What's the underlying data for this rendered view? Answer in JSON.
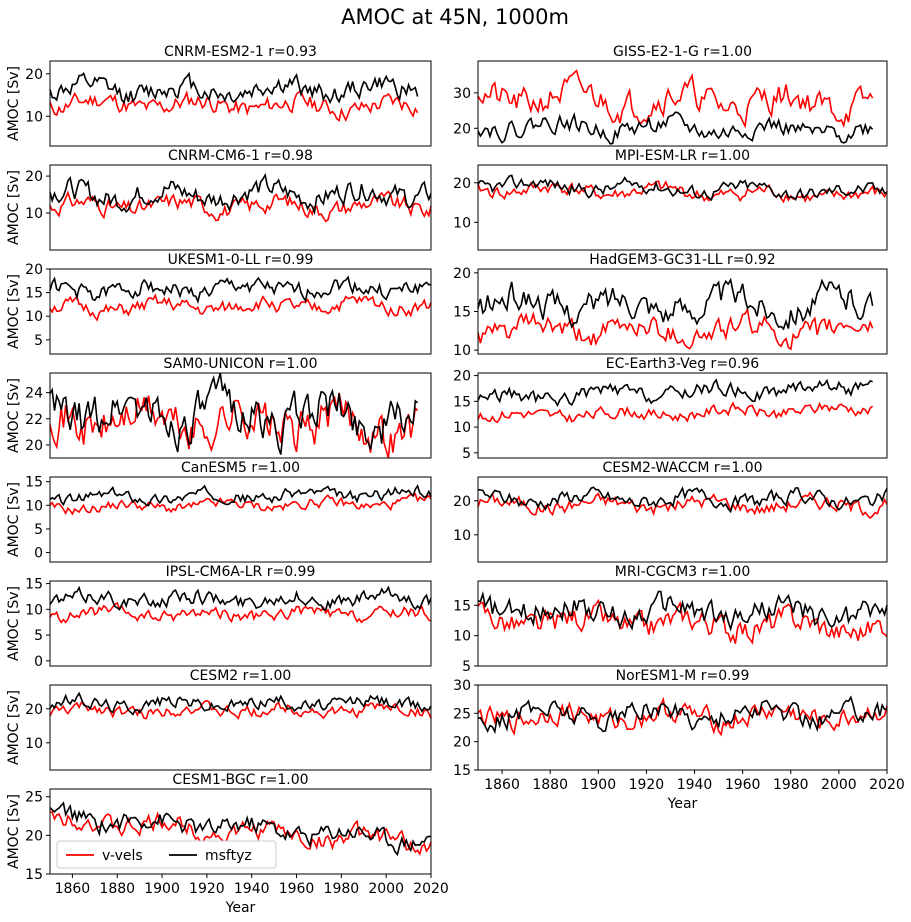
{
  "figure": {
    "title": "AMOC at 45N, 1000m",
    "ylabel": "AMOC [Sv]",
    "xlabel": "Year",
    "legend": {
      "entries": [
        "v-vels",
        "msftyz"
      ],
      "colors": [
        "#ff0000",
        "#000000"
      ],
      "placement": "lower-left"
    }
  },
  "chart_data": [
    {
      "type": "line",
      "title": "CNRM-ESM2-1 r=0.93",
      "xlim": [
        1850,
        2020
      ],
      "ylim": [
        3,
        23
      ],
      "yticks": [
        10,
        20
      ],
      "xticks": [],
      "ylabel": "AMOC [Sv]",
      "series": [
        {
          "name": "v-vels",
          "color": "#ff0000",
          "x": [
            1850,
            2014
          ],
          "base": 13,
          "amp": 1.8,
          "trend": -0.8,
          "seed": 11
        },
        {
          "name": "msftyz",
          "color": "#000000",
          "x": [
            1850,
            2014
          ],
          "base": 16,
          "amp": 2.0,
          "trend": 0.5,
          "seed": 12
        }
      ]
    },
    {
      "type": "line",
      "title": "GISS-E2-1-G r=1.00",
      "xlim": [
        1850,
        2020
      ],
      "ylim": [
        15,
        39
      ],
      "yticks": [
        20,
        30
      ],
      "xticks": [],
      "series": [
        {
          "name": "v-vels",
          "color": "#ff0000",
          "x": [
            1850,
            2014
          ],
          "base": 29,
          "amp": 3.5,
          "trend": -2,
          "seed": 21
        },
        {
          "name": "msftyz",
          "color": "#000000",
          "x": [
            1850,
            2014
          ],
          "base": 21,
          "amp": 2.2,
          "trend": -2,
          "seed": 22
        }
      ]
    },
    {
      "type": "line",
      "title": "CNRM-CM6-1 r=0.98",
      "xlim": [
        1850,
        2020
      ],
      "ylim": [
        0,
        23
      ],
      "yticks": [
        10,
        20
      ],
      "xticks": [],
      "ylabel": "AMOC [Sv]",
      "series": [
        {
          "name": "v-vels",
          "color": "#ff0000",
          "x": [
            1850,
            2020
          ],
          "base": 12,
          "amp": 2.0,
          "trend": 0,
          "seed": 31
        },
        {
          "name": "msftyz",
          "color": "#000000",
          "x": [
            1850,
            2020
          ],
          "base": 15,
          "amp": 2.5,
          "trend": 0.5,
          "seed": 32
        }
      ]
    },
    {
      "type": "line",
      "title": "MPI-ESM-LR r=1.00",
      "xlim": [
        1850,
        2020
      ],
      "ylim": [
        3,
        24.5
      ],
      "yticks": [
        10,
        20
      ],
      "xticks": [],
      "series": [
        {
          "name": "v-vels",
          "color": "#ff0000",
          "x": [
            1850,
            2020
          ],
          "base": 18.5,
          "amp": 1.5,
          "trend": -2,
          "seed": 41
        },
        {
          "name": "msftyz",
          "color": "#000000",
          "x": [
            1850,
            2020
          ],
          "base": 19.5,
          "amp": 1.5,
          "trend": -2,
          "seed": 42
        }
      ]
    },
    {
      "type": "line",
      "title": "UKESM1-0-LL r=0.99",
      "xlim": [
        1850,
        2020
      ],
      "ylim": [
        2,
        20
      ],
      "yticks": [
        5,
        10,
        15,
        20
      ],
      "xticks": [],
      "ylabel": "AMOC [Sv]",
      "series": [
        {
          "name": "v-vels",
          "color": "#ff0000",
          "x": [
            1850,
            2020
          ],
          "base": 11.5,
          "amp": 1.3,
          "trend": 1,
          "seed": 51
        },
        {
          "name": "msftyz",
          "color": "#000000",
          "x": [
            1850,
            2020
          ],
          "base": 15.5,
          "amp": 1.5,
          "trend": 0.5,
          "seed": 52
        }
      ]
    },
    {
      "type": "line",
      "title": "HadGEM3-GC31-LL r=0.92",
      "xlim": [
        1850,
        2020
      ],
      "ylim": [
        9.5,
        20.5
      ],
      "yticks": [
        10,
        15,
        20
      ],
      "xticks": [],
      "series": [
        {
          "name": "v-vels",
          "color": "#ff0000",
          "x": [
            1850,
            2014
          ],
          "base": 12.5,
          "amp": 1.3,
          "trend": 0,
          "seed": 61
        },
        {
          "name": "msftyz",
          "color": "#000000",
          "x": [
            1850,
            2014
          ],
          "base": 16,
          "amp": 1.6,
          "trend": 0,
          "seed": 62
        }
      ]
    },
    {
      "type": "line",
      "title": "SAM0-UNICON r=1.00",
      "xlim": [
        1850,
        2020
      ],
      "ylim": [
        19,
        25.5
      ],
      "yticks": [
        20,
        22,
        24
      ],
      "xticks": [],
      "ylabel": "AMOC [Sv]",
      "series": [
        {
          "name": "v-vels",
          "color": "#ff0000",
          "x": [
            1850,
            2014
          ],
          "base": 22,
          "amp": 1.4,
          "trend": -0.5,
          "seed": 71
        },
        {
          "name": "msftyz",
          "color": "#000000",
          "x": [
            1850,
            2014
          ],
          "base": 22.6,
          "amp": 1.4,
          "trend": -0.5,
          "seed": 72
        }
      ]
    },
    {
      "type": "line",
      "title": "EC-Earth3-Veg r=0.96",
      "xlim": [
        1850,
        2020
      ],
      "ylim": [
        4,
        20.5
      ],
      "yticks": [
        5,
        10,
        15,
        20
      ],
      "xticks": [],
      "series": [
        {
          "name": "v-vels",
          "color": "#ff0000",
          "x": [
            1850,
            2014
          ],
          "base": 12,
          "amp": 1.0,
          "trend": 1.5,
          "seed": 81
        },
        {
          "name": "msftyz",
          "color": "#000000",
          "x": [
            1850,
            2014
          ],
          "base": 15.5,
          "amp": 1.2,
          "trend": 2.5,
          "seed": 82
        }
      ]
    },
    {
      "type": "line",
      "title": "CanESM5 r=1.00",
      "xlim": [
        1850,
        2020
      ],
      "ylim": [
        -2,
        16
      ],
      "yticks": [
        0,
        5,
        10,
        15
      ],
      "xticks": [],
      "ylabel": "AMOC [Sv]",
      "series": [
        {
          "name": "v-vels",
          "color": "#ff0000",
          "x": [
            1850,
            2020
          ],
          "base": 9.5,
          "amp": 0.9,
          "trend": 1,
          "seed": 91
        },
        {
          "name": "msftyz",
          "color": "#000000",
          "x": [
            1850,
            2020
          ],
          "base": 11.5,
          "amp": 1.0,
          "trend": 1,
          "seed": 92
        }
      ]
    },
    {
      "type": "line",
      "title": "CESM2-WACCM r=1.00",
      "xlim": [
        1850,
        2020
      ],
      "ylim": [
        2,
        27
      ],
      "yticks": [
        10,
        20
      ],
      "xticks": [],
      "series": [
        {
          "name": "v-vels",
          "color": "#ff0000",
          "x": [
            1850,
            2020
          ],
          "base": 19,
          "amp": 1.8,
          "trend": 0,
          "seed": 101
        },
        {
          "name": "msftyz",
          "color": "#000000",
          "x": [
            1850,
            2020
          ],
          "base": 20.5,
          "amp": 1.8,
          "trend": 0,
          "seed": 102
        }
      ]
    },
    {
      "type": "line",
      "title": "IPSL-CM6A-LR r=0.99",
      "xlim": [
        1850,
        2020
      ],
      "ylim": [
        -1,
        15.5
      ],
      "yticks": [
        0,
        5,
        10,
        15
      ],
      "xticks": [],
      "ylabel": "AMOC [Sv]",
      "series": [
        {
          "name": "v-vels",
          "color": "#ff0000",
          "x": [
            1850,
            2020
          ],
          "base": 9,
          "amp": 1.0,
          "trend": 0,
          "seed": 111
        },
        {
          "name": "msftyz",
          "color": "#000000",
          "x": [
            1850,
            2020
          ],
          "base": 12,
          "amp": 1.2,
          "trend": 0,
          "seed": 112
        }
      ]
    },
    {
      "type": "line",
      "title": "MRI-CGCM3 r=1.00",
      "xlim": [
        1850,
        2020
      ],
      "ylim": [
        5,
        19
      ],
      "yticks": [
        5,
        10,
        15
      ],
      "xticks": [],
      "series": [
        {
          "name": "v-vels",
          "color": "#ff0000",
          "x": [
            1850,
            2020
          ],
          "base": 12.5,
          "amp": 1.8,
          "trend": -1,
          "seed": 121
        },
        {
          "name": "msftyz",
          "color": "#000000",
          "x": [
            1850,
            2020
          ],
          "base": 14.5,
          "amp": 1.8,
          "trend": -1,
          "seed": 122
        }
      ]
    },
    {
      "type": "line",
      "title": "CESM2 r=1.00",
      "xlim": [
        1850,
        2020
      ],
      "ylim": [
        2,
        27
      ],
      "yticks": [
        10,
        20
      ],
      "xticks": [],
      "ylabel": "AMOC [Sv]",
      "series": [
        {
          "name": "v-vels",
          "color": "#ff0000",
          "x": [
            1850,
            2020
          ],
          "base": 19.5,
          "amp": 1.5,
          "trend": 0,
          "seed": 131
        },
        {
          "name": "msftyz",
          "color": "#000000",
          "x": [
            1850,
            2020
          ],
          "base": 21.5,
          "amp": 1.6,
          "trend": 0,
          "seed": 132
        }
      ]
    },
    {
      "type": "line",
      "title": "NorESM1-M r=0.99",
      "xlim": [
        1850,
        2020
      ],
      "ylim": [
        15,
        30
      ],
      "yticks": [
        15,
        20,
        25,
        30
      ],
      "xticks": [
        1860,
        1880,
        1900,
        1920,
        1940,
        1960,
        1980,
        2000,
        2020
      ],
      "xlabel": "Year",
      "series": [
        {
          "name": "v-vels",
          "color": "#ff0000",
          "x": [
            1850,
            2020
          ],
          "base": 24.5,
          "amp": 1.6,
          "trend": 0,
          "seed": 141
        },
        {
          "name": "msftyz",
          "color": "#000000",
          "x": [
            1850,
            2020
          ],
          "base": 25,
          "amp": 1.6,
          "trend": 0,
          "seed": 142
        }
      ]
    },
    {
      "type": "line",
      "title": "CESM1-BGC r=1.00",
      "xlim": [
        1850,
        2020
      ],
      "ylim": [
        15,
        26
      ],
      "yticks": [
        15,
        20,
        25
      ],
      "xticks": [
        1860,
        1880,
        1900,
        1920,
        1940,
        1960,
        1980,
        2000,
        2020
      ],
      "xlabel": "Year",
      "ylabel": "AMOC [Sv]",
      "legend": true,
      "series": [
        {
          "name": "v-vels",
          "color": "#ff0000",
          "x": [
            1850,
            2020
          ],
          "base": 22,
          "amp": 1.0,
          "trend": -3,
          "seed": 151
        },
        {
          "name": "msftyz",
          "color": "#000000",
          "x": [
            1850,
            2020
          ],
          "base": 22.5,
          "amp": 1.0,
          "trend": -3,
          "seed": 152
        }
      ]
    }
  ]
}
